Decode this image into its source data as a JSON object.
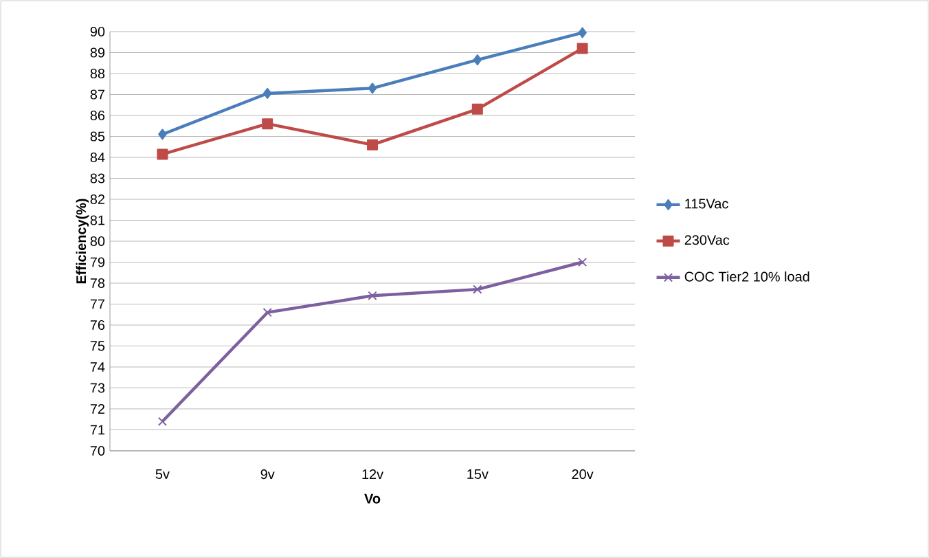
{
  "chart_data": {
    "type": "line",
    "xlabel": "Vo",
    "ylabel": "Efficiency(%)",
    "categories": [
      "5v",
      "9v",
      "12v",
      "15v",
      "20v"
    ],
    "series": [
      {
        "name": "115Vac",
        "color": "#4a7ebb",
        "marker": "diamond",
        "values": [
          85.1,
          87.05,
          87.3,
          88.65,
          89.95
        ]
      },
      {
        "name": "230Vac",
        "color": "#be4b48",
        "marker": "square",
        "values": [
          84.15,
          85.6,
          84.6,
          86.3,
          89.2
        ]
      },
      {
        "name": "COC Tier2 10% load",
        "color": "#7d60a0",
        "marker": "cross",
        "values": [
          71.4,
          76.6,
          77.4,
          77.7,
          79.0
        ]
      }
    ],
    "ylim": [
      70,
      90
    ],
    "yticks": [
      70,
      71,
      72,
      73,
      74,
      75,
      76,
      77,
      78,
      79,
      80,
      81,
      82,
      83,
      84,
      85,
      86,
      87,
      88,
      89,
      90
    ],
    "grid": "y",
    "legend": "right"
  }
}
